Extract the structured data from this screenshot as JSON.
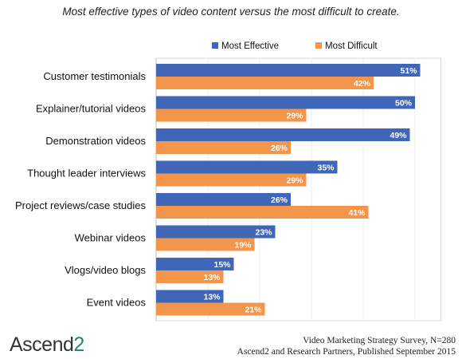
{
  "chart_data": {
    "type": "bar",
    "orientation": "horizontal",
    "title": "Most effective types of video content versus the most difficult to create.",
    "categories": [
      "Customer testimonials",
      "Explainer/tutorial videos",
      "Demonstration videos",
      "Thought leader interviews",
      "Project reviews/case studies",
      "Webinar videos",
      "Vlogs/video blogs",
      "Event videos"
    ],
    "series": [
      {
        "name": "Most Effective",
        "color": "#4066B7",
        "values": [
          51,
          50,
          49,
          35,
          26,
          23,
          15,
          13
        ]
      },
      {
        "name": "Most Difficult",
        "color": "#F3954B",
        "values": [
          42,
          29,
          26,
          29,
          41,
          19,
          13,
          21
        ]
      }
    ],
    "value_suffix": "%",
    "xlim": [
      0,
      55
    ],
    "grid": true,
    "legend_position": "top-right"
  },
  "logo": {
    "text_main": "Ascend",
    "text_accent": "2"
  },
  "source": {
    "line1": "Video Marketing Strategy Survey, N=280",
    "line2": "Ascend2 and Research Partners, Published September 2015"
  }
}
